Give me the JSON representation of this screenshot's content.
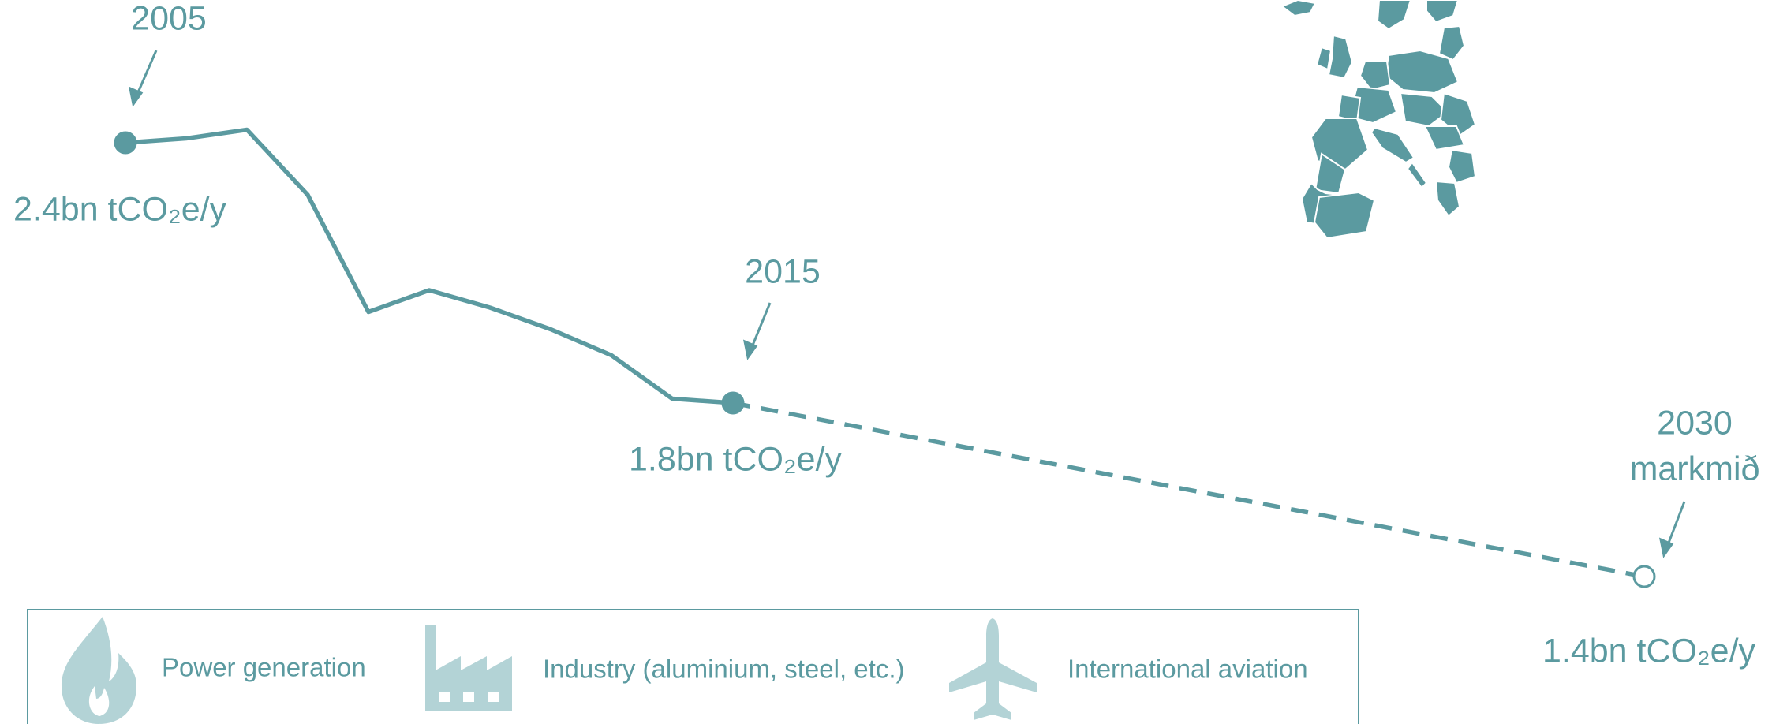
{
  "chart_data": {
    "type": "line",
    "color": "#5b9aa0",
    "x": [
      2005,
      2006,
      2007,
      2008,
      2009,
      2010,
      2011,
      2012,
      2013,
      2014,
      2015
    ],
    "xlim": [
      2005,
      2030
    ],
    "ylim": [
      1.4,
      2.4
    ],
    "series": [
      {
        "values": [
          2.4,
          2.41,
          2.43,
          2.28,
          2.01,
          2.06,
          2.02,
          1.97,
          1.91,
          1.81,
          1.8
        ],
        "value_labels": [
          "2.4bn tCO₂e/y",
          null,
          null,
          null,
          null,
          null,
          null,
          null,
          null,
          null,
          "1.8bn tCO₂e/y"
        ]
      }
    ],
    "projection": {
      "x": [
        2015,
        2030
      ],
      "values": [
        1.8,
        1.4
      ],
      "value_labels": [
        null,
        "1.4bn tCO₂e/y"
      ],
      "dashed": true
    },
    "target_label": "markmið",
    "sectors": [
      "Power generation",
      "Industry (aluminium, steel, etc.)",
      "International aviation"
    ]
  }
}
